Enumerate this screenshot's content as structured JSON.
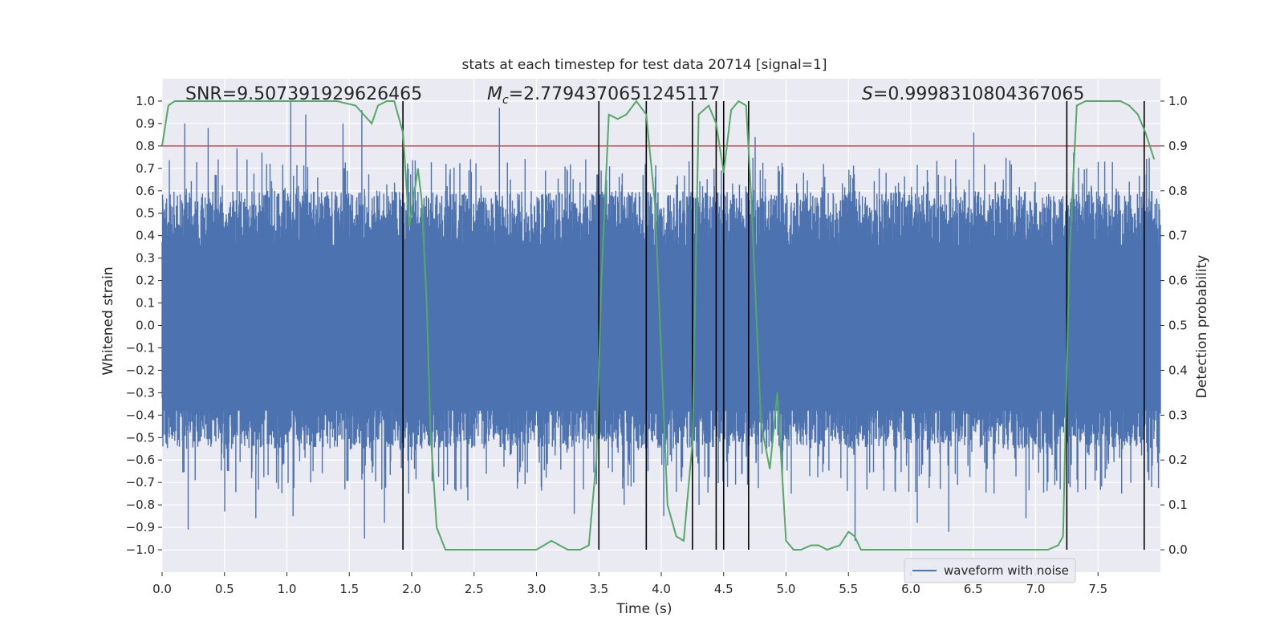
{
  "chart_data": {
    "type": "line",
    "title": "stats at each timestep for test data 20714 [signal=1]",
    "xlabel": "Time (s)",
    "ylabel": "Whitened strain",
    "y2label": "Detection probability",
    "xlim": [
      0.0,
      8.0
    ],
    "ylim": [
      -1.1,
      1.1
    ],
    "y2lim": [
      -0.05,
      1.05
    ],
    "x_ticks": [
      0.0,
      0.5,
      1.0,
      1.5,
      2.0,
      2.5,
      3.0,
      3.5,
      4.0,
      4.5,
      5.0,
      5.5,
      6.0,
      6.5,
      7.0,
      7.5
    ],
    "x_tick_labels": [
      "0.0",
      "0.5",
      "1.0",
      "1.5",
      "2.0",
      "2.5",
      "3.0",
      "3.5",
      "4.0",
      "4.5",
      "5.0",
      "5.5",
      "6.0",
      "6.5",
      "7.0",
      "7.5"
    ],
    "y_ticks": [
      1.0,
      0.9,
      0.8,
      0.7,
      0.6,
      0.5,
      0.4,
      0.3,
      0.2,
      0.1,
      0.0,
      -0.1,
      -0.2,
      -0.3,
      -0.4,
      -0.5,
      -0.6,
      -0.7,
      -0.8,
      -0.9,
      -1.0
    ],
    "y_tick_labels": [
      "1.0",
      "0.9",
      "0.8",
      "0.7",
      "0.6",
      "0.5",
      "0.4",
      "0.3",
      "0.2",
      "0.1",
      "0.0",
      "−0.1",
      "−0.2",
      "−0.3",
      "−0.4",
      "−0.5",
      "−0.6",
      "−0.7",
      "−0.8",
      "−0.9",
      "−1.0"
    ],
    "y2_ticks": [
      1.0,
      0.9,
      0.8,
      0.7,
      0.6,
      0.5,
      0.4,
      0.3,
      0.2,
      0.1,
      0.0
    ],
    "y2_tick_labels": [
      "1.0",
      "0.9",
      "0.8",
      "0.7",
      "0.6",
      "0.5",
      "0.4",
      "0.3",
      "0.2",
      "0.1",
      "0.0"
    ],
    "grid": true,
    "legend": {
      "position": "lower-right",
      "entries": [
        "waveform with noise"
      ]
    },
    "annotations": {
      "snr": "SNR=9.507391929626465",
      "mc_symbol": "M",
      "mc_sub": "c",
      "mc_value": "=2.7794370651245117",
      "s_symbol": "S",
      "s_value": "=0.9998310804367065"
    },
    "threshold_y2": 0.9,
    "vlines_x": [
      1.93,
      3.5,
      3.88,
      4.25,
      4.44,
      4.5,
      4.7,
      7.25,
      7.87
    ],
    "waveform": {
      "name": "waveform with noise",
      "x_range": [
        0.0,
        8.0
      ],
      "envelope_typical": [
        -0.5,
        0.6
      ],
      "peaks_x": [
        0.18,
        0.37,
        0.6,
        0.8,
        1.03,
        1.15,
        1.45,
        1.6,
        2.7,
        4.75,
        5.8,
        6.5,
        7.3,
        7.55
      ],
      "peaks_y": [
        0.9,
        0.88,
        0.79,
        0.77,
        1.0,
        0.94,
        0.9,
        0.96,
        0.97,
        0.84,
        0.68,
        0.86,
        0.77,
        0.73
      ],
      "troughs_x": [
        0.21,
        0.5,
        0.75,
        1.05,
        1.62,
        1.78,
        2.45,
        3.3,
        3.7,
        4.02,
        4.3,
        5.55,
        6.05,
        6.3,
        6.92
      ],
      "troughs_y": [
        -0.91,
        -0.83,
        -0.86,
        -0.85,
        -0.95,
        -0.88,
        -0.78,
        -0.84,
        -0.8,
        -0.85,
        -0.8,
        -0.96,
        -0.88,
        -0.92,
        -0.86
      ]
    },
    "series": [
      {
        "name": "detection probability",
        "x": [
          0.0,
          0.05,
          0.1,
          0.2,
          0.4,
          0.6,
          0.8,
          1.0,
          1.2,
          1.4,
          1.55,
          1.68,
          1.73,
          1.8,
          1.86,
          1.93,
          1.98,
          2.05,
          2.08,
          2.12,
          2.15,
          2.2,
          2.27,
          2.4,
          2.6,
          2.8,
          3.0,
          3.12,
          3.25,
          3.35,
          3.42,
          3.48,
          3.52,
          3.58,
          3.65,
          3.72,
          3.8,
          3.88,
          3.95,
          4.05,
          4.12,
          4.18,
          4.25,
          4.3,
          4.38,
          4.44,
          4.5,
          4.56,
          4.62,
          4.68,
          4.72,
          4.8,
          4.87,
          4.93,
          5.0,
          5.06,
          5.12,
          5.2,
          5.26,
          5.33,
          5.43,
          5.5,
          5.55,
          5.6,
          5.7,
          5.8,
          6.0,
          6.2,
          6.5,
          6.8,
          7.0,
          7.1,
          7.18,
          7.22,
          7.27,
          7.33,
          7.4,
          7.5,
          7.6,
          7.68,
          7.75,
          7.82,
          7.88,
          7.95
        ],
        "y": [
          0.9,
          0.99,
          1.0,
          1.0,
          1.0,
          1.0,
          1.0,
          1.0,
          1.0,
          1.0,
          0.99,
          0.95,
          0.99,
          1.0,
          1.0,
          0.93,
          0.72,
          0.85,
          0.78,
          0.55,
          0.27,
          0.05,
          0.0,
          0.0,
          0.0,
          0.0,
          0.0,
          0.02,
          0.0,
          0.0,
          0.01,
          0.2,
          0.6,
          0.97,
          0.96,
          0.97,
          1.0,
          0.97,
          0.77,
          0.1,
          0.03,
          0.02,
          0.24,
          0.97,
          0.99,
          0.95,
          0.84,
          0.98,
          1.0,
          0.99,
          0.79,
          0.28,
          0.18,
          0.35,
          0.02,
          0.0,
          0.0,
          0.01,
          0.01,
          0.0,
          0.01,
          0.04,
          0.03,
          0.0,
          0.0,
          0.0,
          0.0,
          0.0,
          0.0,
          0.0,
          0.0,
          0.0,
          0.01,
          0.03,
          0.65,
          0.99,
          1.0,
          1.0,
          1.0,
          1.0,
          0.99,
          0.97,
          0.93,
          0.87
        ]
      }
    ]
  }
}
